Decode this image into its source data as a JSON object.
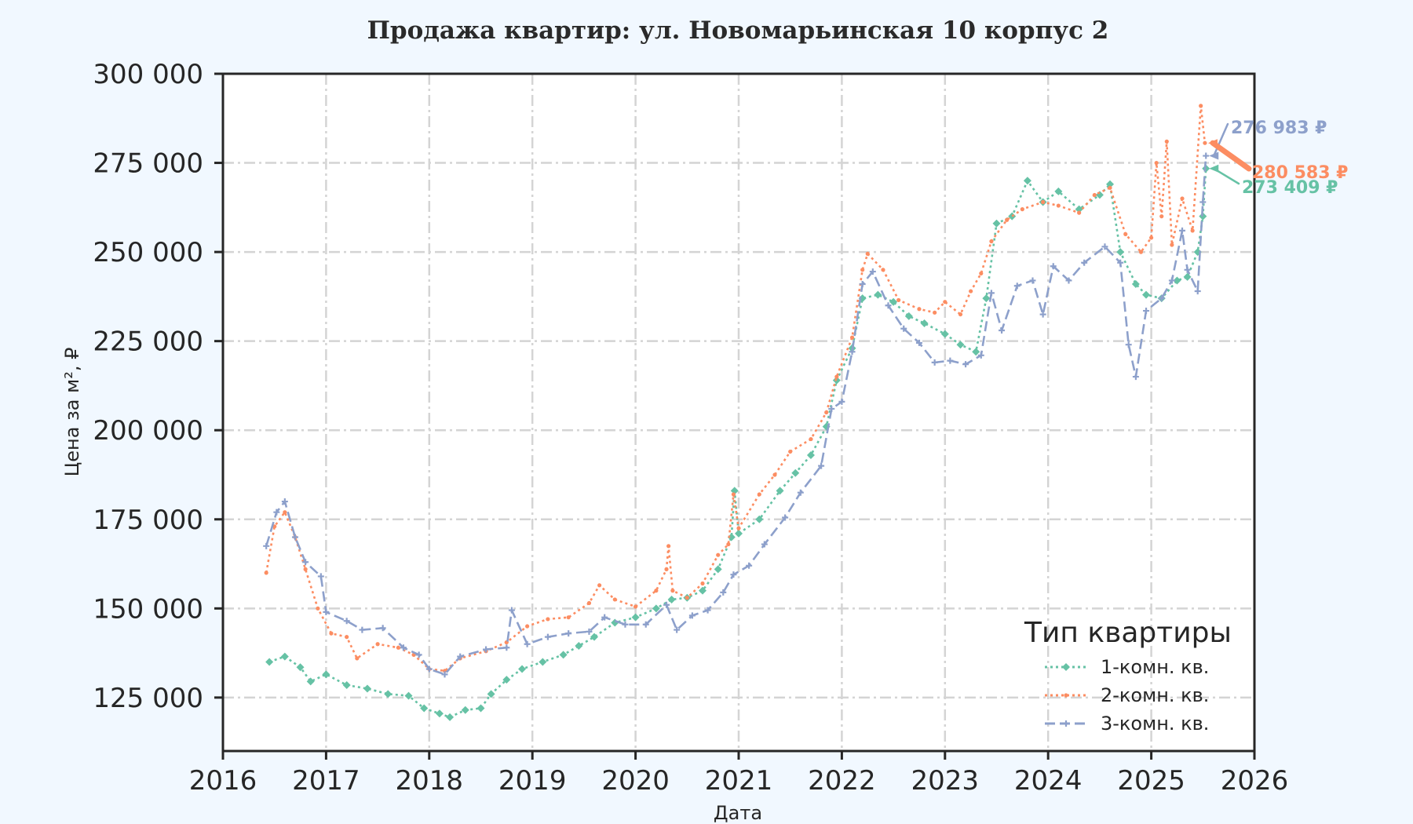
{
  "colors": {
    "background": "#f1f8ff",
    "plot_background": "#ffffff",
    "grid": "#d4d4d4",
    "axis": "#262626",
    "series": [
      "#66c2a5",
      "#fc8d62",
      "#8da0cb"
    ]
  },
  "chart_data": {
    "type": "line",
    "title": "Продажа квартир: ул. Новомарьинская 10 корпус 2",
    "xlabel": "Дата",
    "ylabel": "Цена за м², ₽",
    "xlim": [
      2016,
      2026
    ],
    "ylim": [
      110000,
      300000
    ],
    "x_ticks": [
      2016,
      2017,
      2018,
      2019,
      2020,
      2021,
      2022,
      2023,
      2024,
      2025,
      2026
    ],
    "x_tick_labels": [
      "2016",
      "2017",
      "2018",
      "2019",
      "2020",
      "2021",
      "2022",
      "2023",
      "2024",
      "2025",
      "2026"
    ],
    "y_ticks": [
      125000,
      150000,
      175000,
      200000,
      225000,
      250000,
      275000,
      300000
    ],
    "y_tick_labels": [
      "125 000",
      "150 000",
      "175 000",
      "200 000",
      "225 000",
      "250 000",
      "275 000",
      "300 000"
    ],
    "grid": true,
    "legend": {
      "title": "Тип квартиры",
      "position": "lower-right"
    },
    "series": [
      {
        "name": "1-комн. кв.",
        "line_style": "dotted",
        "marker": "diamond",
        "end_label": "273 409 ₽",
        "points": [
          [
            2016.45,
            135000
          ],
          [
            2016.6,
            136500
          ],
          [
            2016.75,
            133500
          ],
          [
            2016.85,
            129500
          ],
          [
            2017.0,
            131500
          ],
          [
            2017.2,
            128500
          ],
          [
            2017.4,
            127500
          ],
          [
            2017.6,
            126000
          ],
          [
            2017.8,
            125500
          ],
          [
            2017.95,
            122000
          ],
          [
            2018.1,
            120500
          ],
          [
            2018.2,
            119500
          ],
          [
            2018.35,
            121500
          ],
          [
            2018.5,
            122000
          ],
          [
            2018.6,
            126000
          ],
          [
            2018.75,
            130000
          ],
          [
            2018.9,
            133000
          ],
          [
            2019.1,
            135000
          ],
          [
            2019.3,
            137000
          ],
          [
            2019.45,
            139500
          ],
          [
            2019.6,
            142000
          ],
          [
            2019.8,
            146000
          ],
          [
            2020.0,
            147500
          ],
          [
            2020.2,
            150000
          ],
          [
            2020.35,
            152500
          ],
          [
            2020.5,
            153000
          ],
          [
            2020.65,
            155000
          ],
          [
            2020.8,
            161000
          ],
          [
            2020.93,
            170000
          ],
          [
            2020.96,
            183000
          ],
          [
            2021.0,
            171000
          ],
          [
            2021.2,
            175000
          ],
          [
            2021.4,
            183000
          ],
          [
            2021.55,
            188000
          ],
          [
            2021.7,
            193000
          ],
          [
            2021.85,
            201000
          ],
          [
            2021.95,
            214000
          ],
          [
            2022.1,
            223000
          ],
          [
            2022.2,
            237000
          ],
          [
            2022.35,
            238000
          ],
          [
            2022.5,
            236000
          ],
          [
            2022.65,
            232000
          ],
          [
            2022.8,
            230000
          ],
          [
            2023.0,
            227000
          ],
          [
            2023.15,
            224000
          ],
          [
            2023.3,
            222000
          ],
          [
            2023.4,
            237000
          ],
          [
            2023.5,
            258000
          ],
          [
            2023.65,
            260000
          ],
          [
            2023.8,
            270000
          ],
          [
            2023.95,
            264000
          ],
          [
            2024.1,
            267000
          ],
          [
            2024.3,
            262000
          ],
          [
            2024.5,
            266000
          ],
          [
            2024.6,
            269000
          ],
          [
            2024.7,
            250000
          ],
          [
            2024.85,
            241000
          ],
          [
            2024.95,
            238000
          ],
          [
            2025.1,
            237000
          ],
          [
            2025.25,
            242000
          ],
          [
            2025.35,
            243000
          ],
          [
            2025.45,
            250000
          ],
          [
            2025.5,
            260000
          ],
          [
            2025.53,
            273409
          ]
        ]
      },
      {
        "name": "2-комн. кв.",
        "line_style": "dotted",
        "marker": "dot",
        "end_label": "280 583 ₽",
        "points": [
          [
            2016.42,
            160000
          ],
          [
            2016.5,
            173000
          ],
          [
            2016.6,
            177000
          ],
          [
            2016.7,
            170000
          ],
          [
            2016.8,
            161000
          ],
          [
            2016.92,
            150000
          ],
          [
            2017.05,
            143000
          ],
          [
            2017.2,
            142000
          ],
          [
            2017.3,
            136000
          ],
          [
            2017.5,
            140000
          ],
          [
            2017.7,
            139000
          ],
          [
            2017.85,
            137000
          ],
          [
            2018.0,
            133000
          ],
          [
            2018.15,
            132500
          ],
          [
            2018.3,
            136000
          ],
          [
            2018.55,
            138000
          ],
          [
            2018.75,
            140500
          ],
          [
            2018.95,
            145000
          ],
          [
            2019.15,
            147000
          ],
          [
            2019.35,
            147500
          ],
          [
            2019.55,
            151500
          ],
          [
            2019.65,
            156500
          ],
          [
            2019.8,
            152500
          ],
          [
            2020.0,
            150500
          ],
          [
            2020.2,
            155000
          ],
          [
            2020.3,
            161000
          ],
          [
            2020.32,
            167500
          ],
          [
            2020.36,
            155000
          ],
          [
            2020.5,
            153000
          ],
          [
            2020.65,
            157000
          ],
          [
            2020.8,
            165000
          ],
          [
            2020.9,
            168000
          ],
          [
            2020.95,
            182000
          ],
          [
            2021.0,
            172500
          ],
          [
            2021.2,
            182000
          ],
          [
            2021.35,
            187500
          ],
          [
            2021.5,
            194000
          ],
          [
            2021.7,
            197500
          ],
          [
            2021.85,
            205000
          ],
          [
            2021.95,
            215000
          ],
          [
            2022.1,
            226000
          ],
          [
            2022.2,
            245000
          ],
          [
            2022.25,
            249500
          ],
          [
            2022.4,
            245000
          ],
          [
            2022.55,
            236500
          ],
          [
            2022.75,
            234000
          ],
          [
            2022.9,
            233000
          ],
          [
            2023.0,
            236000
          ],
          [
            2023.15,
            232500
          ],
          [
            2023.25,
            239000
          ],
          [
            2023.35,
            244000
          ],
          [
            2023.45,
            253000
          ],
          [
            2023.6,
            259000
          ],
          [
            2023.75,
            262000
          ],
          [
            2023.95,
            264000
          ],
          [
            2024.1,
            263000
          ],
          [
            2024.3,
            261000
          ],
          [
            2024.45,
            266000
          ],
          [
            2024.6,
            268000
          ],
          [
            2024.75,
            255000
          ],
          [
            2024.9,
            250000
          ],
          [
            2025.0,
            254000
          ],
          [
            2025.05,
            275000
          ],
          [
            2025.1,
            260000
          ],
          [
            2025.15,
            281000
          ],
          [
            2025.2,
            252000
          ],
          [
            2025.3,
            265000
          ],
          [
            2025.4,
            256000
          ],
          [
            2025.48,
            291000
          ],
          [
            2025.52,
            280583
          ]
        ]
      },
      {
        "name": "3-комн. кв.",
        "line_style": "dashed",
        "marker": "plus",
        "end_label": "276 983 ₽",
        "points": [
          [
            2016.42,
            167500
          ],
          [
            2016.52,
            177000
          ],
          [
            2016.6,
            180000
          ],
          [
            2016.7,
            170000
          ],
          [
            2016.8,
            163000
          ],
          [
            2016.95,
            159000
          ],
          [
            2017.0,
            149000
          ],
          [
            2017.2,
            146500
          ],
          [
            2017.35,
            144000
          ],
          [
            2017.55,
            144500
          ],
          [
            2017.75,
            139000
          ],
          [
            2017.9,
            137000
          ],
          [
            2018.0,
            133000
          ],
          [
            2018.15,
            131500
          ],
          [
            2018.3,
            136500
          ],
          [
            2018.55,
            138500
          ],
          [
            2018.75,
            139000
          ],
          [
            2018.8,
            149500
          ],
          [
            2018.95,
            140000
          ],
          [
            2019.15,
            142000
          ],
          [
            2019.35,
            143000
          ],
          [
            2019.55,
            143500
          ],
          [
            2019.7,
            147500
          ],
          [
            2019.9,
            145500
          ],
          [
            2020.1,
            145500
          ],
          [
            2020.3,
            151000
          ],
          [
            2020.4,
            144000
          ],
          [
            2020.55,
            148000
          ],
          [
            2020.7,
            149500
          ],
          [
            2020.85,
            154500
          ],
          [
            2020.95,
            159500
          ],
          [
            2021.1,
            162000
          ],
          [
            2021.25,
            168000
          ],
          [
            2021.45,
            175500
          ],
          [
            2021.6,
            182500
          ],
          [
            2021.8,
            190000
          ],
          [
            2021.9,
            206000
          ],
          [
            2022.0,
            208000
          ],
          [
            2022.1,
            222000
          ],
          [
            2022.2,
            241000
          ],
          [
            2022.3,
            244500
          ],
          [
            2022.45,
            235000
          ],
          [
            2022.6,
            228500
          ],
          [
            2022.75,
            224500
          ],
          [
            2022.9,
            219000
          ],
          [
            2023.05,
            219500
          ],
          [
            2023.2,
            218500
          ],
          [
            2023.35,
            221000
          ],
          [
            2023.45,
            238500
          ],
          [
            2023.55,
            228000
          ],
          [
            2023.7,
            240500
          ],
          [
            2023.85,
            242000
          ],
          [
            2023.95,
            232500
          ],
          [
            2024.05,
            246000
          ],
          [
            2024.2,
            242000
          ],
          [
            2024.35,
            247000
          ],
          [
            2024.55,
            251500
          ],
          [
            2024.7,
            247000
          ],
          [
            2024.78,
            224000
          ],
          [
            2024.85,
            215000
          ],
          [
            2024.95,
            233500
          ],
          [
            2025.1,
            237000
          ],
          [
            2025.2,
            242000
          ],
          [
            2025.3,
            256000
          ],
          [
            2025.35,
            245000
          ],
          [
            2025.45,
            239000
          ],
          [
            2025.5,
            264000
          ],
          [
            2025.53,
            276983
          ]
        ]
      }
    ]
  }
}
